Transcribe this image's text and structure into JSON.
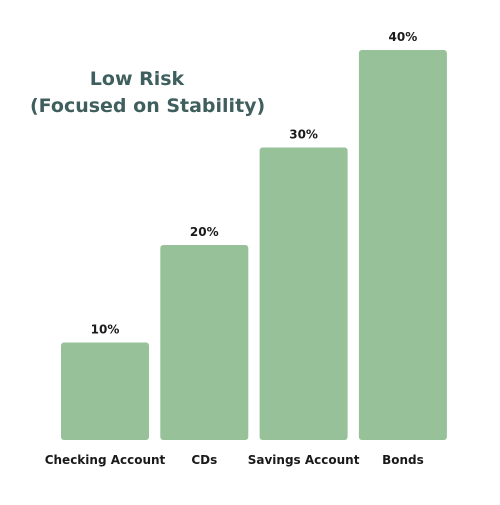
{
  "chart_data": {
    "type": "bar",
    "title": "Low Risk",
    "subtitle": "(Focused on Stability)",
    "categories": [
      "Checking Account",
      "CDs",
      "Savings Account",
      "Bonds"
    ],
    "values": [
      10,
      20,
      30,
      40
    ],
    "value_labels": [
      "10%",
      "20%",
      "30%",
      "40%"
    ],
    "unit": "%",
    "ylim": [
      0,
      40
    ],
    "xlabel": "",
    "ylabel": "",
    "grid": false,
    "legend": "none",
    "colors": {
      "bar": "#96c199",
      "title": "#3f5f5e",
      "label": "#1a1a1a"
    }
  }
}
